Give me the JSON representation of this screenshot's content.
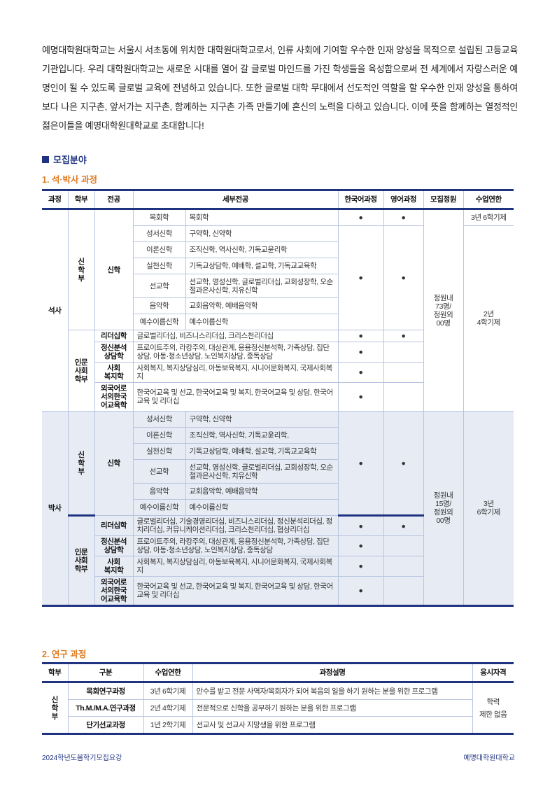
{
  "intro": "예명대학원대학교는 서울시 서초동에 위치한 대학원대학교로서, 인류 사회에 기여할 우수한 인재 양성을 목적으로 설립된 고등교육기관입니다. 우리 대학원대학교는 새로운 시대를 열어 갈 글로벌 마인드를 가진 학생들을 육성함으로써 전 세계에서 자랑스러운 예명인이 될 수 있도록 글로벌 교육에 전념하고 있습니다. 또한 글로벌 대학 무대에서 선도적인 역할을 할 우수한 인재 양성을 통하여 보다 나은 지구촌, 앞서가는 지구촌, 함께하는 지구촌 가족 만들기에 혼신의 노력을 다하고 있습니다. 이에 뜻을 함께하는 열정적인 젊은이들을 예명대학원대학교로 초대합니다!",
  "section_title": "모집분야",
  "colors": {
    "navy": "#1f3380",
    "orange": "#e07a20",
    "doctor_bg": "#e7ebf4"
  },
  "table1": {
    "title": "1. 석·박사 과정",
    "headers": [
      "과정",
      "학부",
      "전공",
      "세부전공",
      "한국어과정",
      "영어과정",
      "모집정원",
      "수업연한"
    ],
    "sections": [
      {
        "course": "석사",
        "theology": {
          "dept": "신\n학\n부",
          "major": "신학",
          "rows": [
            {
              "sub": "목회학",
              "detail": "목회학"
            },
            {
              "sub": "성서신학",
              "detail": "구약학, 신약학"
            },
            {
              "sub": "이론신학",
              "detail": "조직신학, 역사신학, 기독교윤리학"
            },
            {
              "sub": "실천신학",
              "detail": "기독교상담학, 예배학, 설교학, 기독교교육학"
            },
            {
              "sub": "선교학",
              "detail": "선교학, 영성신학, 글로벌리더십, 교회성장학, 오순절과은사신학, 치유신학"
            },
            {
              "sub": "음악학",
              "detail": "교회음악학, 예배음악학"
            },
            {
              "sub": "예수이름신학",
              "detail": "예수이름신학"
            }
          ],
          "dots": [
            {
              "korean": "●",
              "english": "●"
            },
            {
              "korean": "●",
              "english": "●"
            }
          ]
        },
        "humanities": {
          "dept": "인문\n사회\n학부",
          "rows": [
            {
              "major": "리더십학",
              "detail": "글로벌리더십, 비즈니스리더십, 크리스천리더십",
              "korean": "●",
              "english": "●"
            },
            {
              "major": "정신분석\n상담학",
              "detail": "프로이트주의, 라캉주의, 대상관계, 응용정신분석학, 가족상담, 집단상담, 아동·청소년상담, 노인복지상담, 중독상담",
              "korean": "●",
              "english": ""
            },
            {
              "major": "사회\n복지학",
              "detail": "사회복지, 복지상담심리, 아동보육복지, 시니어문화복지, 국제사회복지",
              "korean": "●",
              "english": ""
            },
            {
              "major": "외국어로\n서의한국\n어교육학",
              "detail": "한국어교육 및 선교, 한국어교육 및 복지, 한국어교육 및 상담, 한국어교육 및 리더십",
              "korean": "●",
              "english": ""
            }
          ]
        },
        "quota": "정원내\n73명/\n정원외\n00명",
        "years": [
          "3년 6학기제",
          "2년\n4학기제"
        ]
      },
      {
        "course": "박사",
        "theology": {
          "dept": "신\n학\n부",
          "major": "신학",
          "rows": [
            {
              "sub": "성서신학",
              "detail": "구약학, 신약학"
            },
            {
              "sub": "이론신학",
              "detail": "조직신학, 역사신학, 기독교윤리학,"
            },
            {
              "sub": "실천신학",
              "detail": "기독교상담학, 예배학, 설교학, 기독교교육학"
            },
            {
              "sub": "선교학",
              "detail": "선교학, 영성신학, 글로벌리더십, 교회성장학, 오순절과은사신학, 치유신학"
            },
            {
              "sub": "음악학",
              "detail": "교회음악학, 예배음악학"
            },
            {
              "sub": "예수이름신학",
              "detail": "예수이름신학"
            }
          ],
          "dots": [
            {
              "korean": "●",
              "english": "●"
            }
          ]
        },
        "humanities": {
          "dept": "인문\n사회\n학부",
          "rows": [
            {
              "major": "리더십학",
              "detail": "글로벌리더십, 기술경영리더십, 비즈니스리더십, 정신분석리더십, 정치리더십, 커뮤니케이션리더십, 크리스천리더십, 협상리더십",
              "korean": "●",
              "english": "●"
            },
            {
              "major": "정신분석\n상담학",
              "detail": "프로이트주의, 라캉주의, 대상관계, 응용정신분석학, 가족상담, 집단상담, 아동·청소년상담, 노인복지상담, 중독상담",
              "korean": "●",
              "english": ""
            },
            {
              "major": "사회\n복지학",
              "detail": "사회복지, 복지상담심리, 아동보육복지, 시니어문화복지, 국제사회복지",
              "korean": "●",
              "english": ""
            },
            {
              "major": "외국어로\n서의한국\n어교육학",
              "detail": "한국어교육 및 선교, 한국어교육 및 복지, 한국어교육 및 상담, 한국어교육 및 리더십",
              "korean": "●",
              "english": ""
            }
          ]
        },
        "quota": "정원내\n15명/\n정원외\n00명",
        "years": [
          "3년\n6학기제"
        ]
      }
    ]
  },
  "table2": {
    "title": "2. 연구 과정",
    "headers": [
      "학부",
      "구분",
      "수업연한",
      "과정설명",
      "응시자격"
    ],
    "dept": "신\n학\n부",
    "qualification": "학력\n제한 없음",
    "rows": [
      {
        "name": "목회연구과정",
        "years": "3년 6학기제",
        "desc": "안수를 받고 전문 사역자/목회자가 되어 복음의 일을 하기 원하는 분을 위한 프로그램"
      },
      {
        "name": "Th.M./M.A.연구과정",
        "years": "2년 4학기제",
        "desc": "전문적으로 신학을 공부하기 원하는 분을 위한 프로그램"
      },
      {
        "name": "단기선교과정",
        "years": "1년 2학기제",
        "desc": "선교사 및 선교사 지망생을 위한 프로그램"
      }
    ]
  },
  "footer": {
    "left": "2024학년도봄학기모집요강",
    "right": "예명대학원대학교"
  }
}
